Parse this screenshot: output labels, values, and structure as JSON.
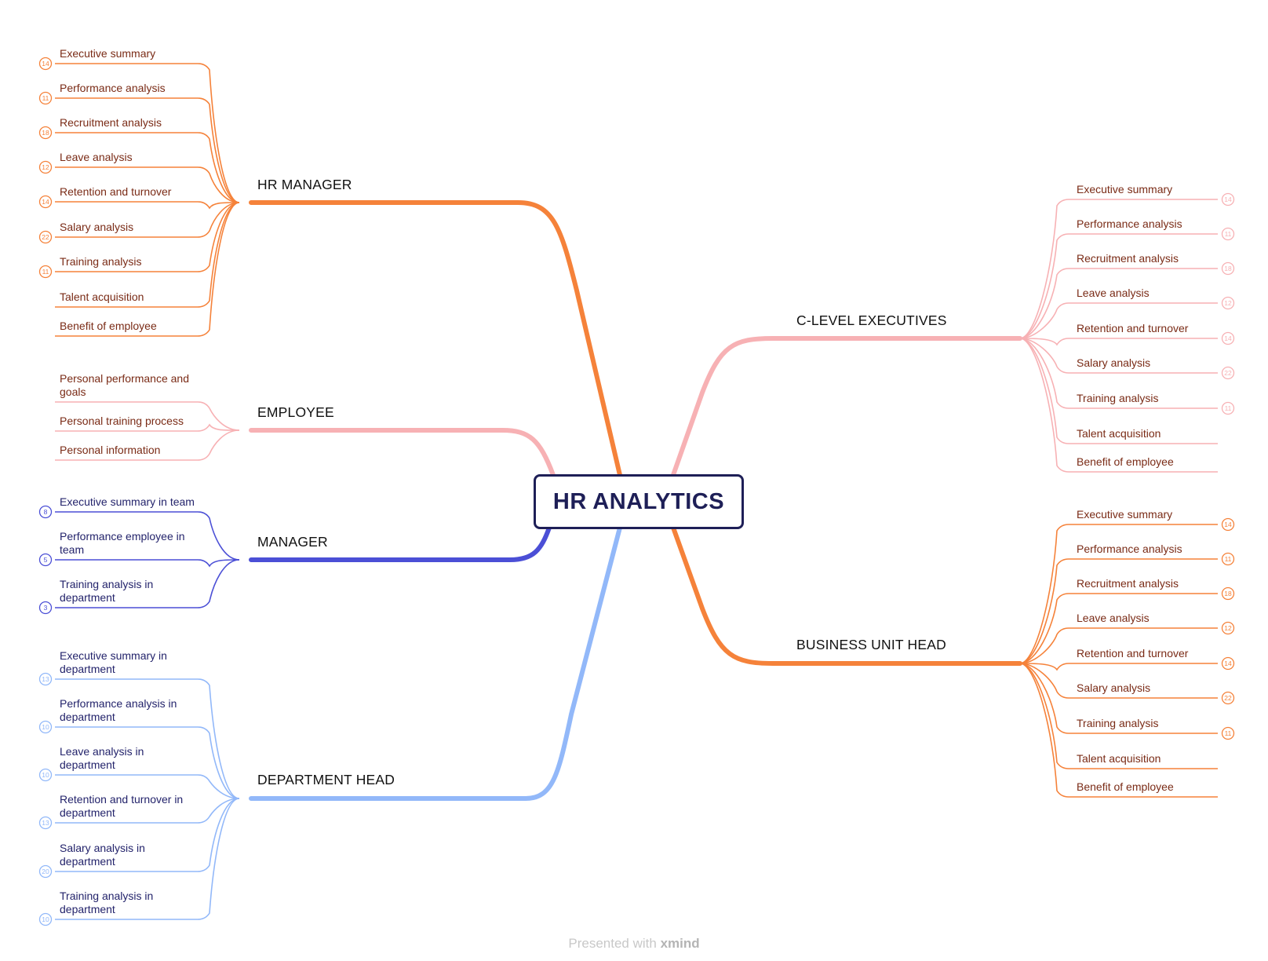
{
  "root": {
    "title": "HR ANALYTICS"
  },
  "footer": {
    "prefix": "Presented with",
    "brand": "xmind"
  },
  "colors": {
    "orange": "#f5823a",
    "orange_text": "#7a2b16",
    "pink": "#f7b1b4",
    "pink_text": "#7a2b16",
    "indigo": "#4b4fd6",
    "indigo_text": "#23236b",
    "lightblue": "#92b8f9",
    "lightblue_text": "#23236b",
    "root_border": "#1e1f57"
  },
  "branches": [
    {
      "id": "hr-manager",
      "label": "HR MANAGER",
      "color_key": "orange",
      "side": "left",
      "items": [
        {
          "text": [
            "Executive summary"
          ],
          "badge": "14"
        },
        {
          "text": [
            "Performance analysis"
          ],
          "badge": "11"
        },
        {
          "text": [
            "Recruitment analysis"
          ],
          "badge": "18"
        },
        {
          "text": [
            "Leave analysis"
          ],
          "badge": "12"
        },
        {
          "text": [
            "Retention and turnover"
          ],
          "badge": "14"
        },
        {
          "text": [
            "Salary analysis"
          ],
          "badge": "22"
        },
        {
          "text": [
            "Training analysis"
          ],
          "badge": "11"
        },
        {
          "text": [
            "Talent acquisition"
          ],
          "badge": ""
        },
        {
          "text": [
            "Benefit of employee"
          ],
          "badge": ""
        }
      ]
    },
    {
      "id": "employee",
      "label": "EMPLOYEE",
      "color_key": "pink",
      "side": "left",
      "items": [
        {
          "text": [
            "Personal performance and",
            "goals"
          ],
          "badge": ""
        },
        {
          "text": [
            "Personal training process"
          ],
          "badge": ""
        },
        {
          "text": [
            "Personal information"
          ],
          "badge": ""
        }
      ]
    },
    {
      "id": "manager",
      "label": "MANAGER",
      "color_key": "indigo",
      "side": "left",
      "items": [
        {
          "text": [
            "Executive summary in team"
          ],
          "badge": "8"
        },
        {
          "text": [
            "Performance employee in",
            "team"
          ],
          "badge": "5"
        },
        {
          "text": [
            "Training analysis in",
            "department"
          ],
          "badge": "3"
        }
      ]
    },
    {
      "id": "department-head",
      "label": "DEPARTMENT HEAD",
      "color_key": "lightblue",
      "side": "left",
      "items": [
        {
          "text": [
            "Executive summary in",
            "department"
          ],
          "badge": "13"
        },
        {
          "text": [
            "Performance analysis in",
            "department"
          ],
          "badge": "10"
        },
        {
          "text": [
            "Leave analysis in",
            "department"
          ],
          "badge": "10"
        },
        {
          "text": [
            "Retention and turnover  in",
            "department"
          ],
          "badge": "13"
        },
        {
          "text": [
            "Salary analysis in",
            "department"
          ],
          "badge": "20"
        },
        {
          "text": [
            "Training analysis in",
            "department"
          ],
          "badge": "10"
        }
      ]
    },
    {
      "id": "c-level-executives",
      "label": "C-LEVEL EXECUTIVES",
      "color_key": "pink",
      "side": "right",
      "items": [
        {
          "text": [
            "Executive summary"
          ],
          "badge": "14"
        },
        {
          "text": [
            "Performance analysis"
          ],
          "badge": "11"
        },
        {
          "text": [
            "Recruitment analysis"
          ],
          "badge": "18"
        },
        {
          "text": [
            "Leave analysis"
          ],
          "badge": "12"
        },
        {
          "text": [
            "Retention and turnover"
          ],
          "badge": "14"
        },
        {
          "text": [
            "Salary analysis"
          ],
          "badge": "22"
        },
        {
          "text": [
            "Training analysis"
          ],
          "badge": "11"
        },
        {
          "text": [
            "Talent acquisition"
          ],
          "badge": ""
        },
        {
          "text": [
            "Benefit of employee"
          ],
          "badge": ""
        }
      ]
    },
    {
      "id": "business-unit-head",
      "label": "BUSINESS UNIT HEAD",
      "color_key": "orange",
      "side": "right",
      "items": [
        {
          "text": [
            "Executive summary"
          ],
          "badge": "14"
        },
        {
          "text": [
            "Performance analysis"
          ],
          "badge": "11"
        },
        {
          "text": [
            "Recruitment analysis"
          ],
          "badge": "18"
        },
        {
          "text": [
            "Leave analysis"
          ],
          "badge": "12"
        },
        {
          "text": [
            "Retention and turnover"
          ],
          "badge": "14"
        },
        {
          "text": [
            "Salary analysis"
          ],
          "badge": "22"
        },
        {
          "text": [
            "Training analysis"
          ],
          "badge": "11"
        },
        {
          "text": [
            "Talent acquisition"
          ],
          "badge": ""
        },
        {
          "text": [
            "Benefit of employee"
          ],
          "badge": ""
        }
      ]
    }
  ]
}
